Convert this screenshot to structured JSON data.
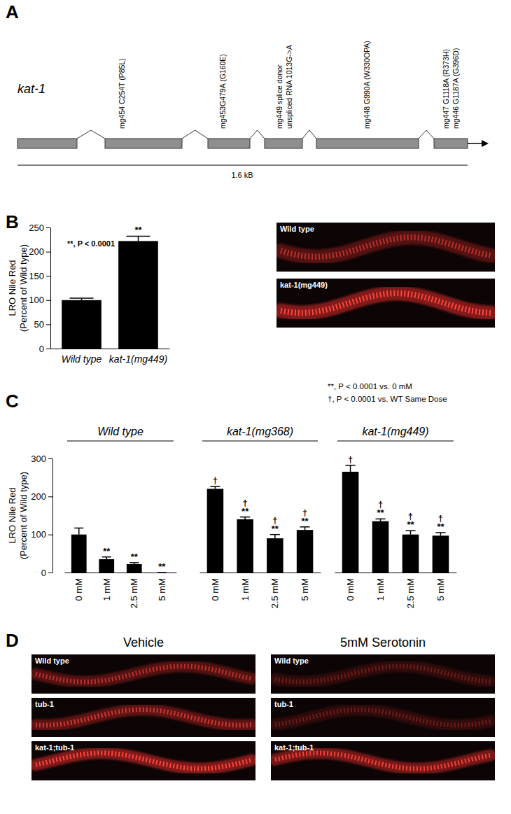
{
  "gene_diagram": {
    "panel": "A",
    "gene": "kat-1",
    "scale_label": "1.6 kB",
    "mutations": [
      [
        "mg454 C254T (P85L)"
      ],
      [
        "mg453G479A (G160E)"
      ],
      [
        "mg449 splice donor",
        "unspliced RNA 1013G->A"
      ],
      [
        "mg448 G990A (W330OPA)"
      ],
      [
        "mg447 G1118A (R373H)",
        "mg446 G1187A (G396D)"
      ]
    ]
  },
  "chart_data": [
    {
      "panel": "B",
      "type": "bar",
      "categories": [
        "Wild type",
        "kat-1(mg449)"
      ],
      "values": [
        100,
        222
      ],
      "errors": [
        4,
        10
      ],
      "significance": [
        [],
        [
          "**"
        ]
      ],
      "annotations": [
        "**, P < 0.0001"
      ],
      "ylabel": [
        "LRO Nile Red",
        "(Percent of Wild type)"
      ],
      "ylim": [
        0,
        250
      ],
      "yticks": [
        0,
        50,
        100,
        150,
        200,
        250
      ],
      "color": "#000000"
    },
    {
      "panel": "C",
      "type": "bar",
      "categories": [
        "0 mM",
        "1 mM",
        "2.5 mM",
        "5 mM"
      ],
      "series": [
        {
          "name": "Wild type",
          "values": [
            100,
            35,
            22,
            0
          ],
          "errors": [
            17,
            6,
            4,
            0
          ],
          "significance": [
            [],
            [
              "**"
            ],
            [
              "**"
            ],
            [
              "**"
            ]
          ]
        },
        {
          "name": "kat-1(mg368)",
          "values": [
            220,
            140,
            90,
            112
          ],
          "errors": [
            6,
            6,
            10,
            8
          ],
          "significance": [
            [
              "†"
            ],
            [
              "†",
              "**"
            ],
            [
              "†",
              "**"
            ],
            [
              "†",
              "**"
            ]
          ]
        },
        {
          "name": "kat-1(mg449)",
          "values": [
            265,
            135,
            100,
            97
          ],
          "errors": [
            17,
            6,
            10,
            8
          ],
          "significance": [
            [
              "†"
            ],
            [
              "†",
              "**"
            ],
            [
              "†",
              "**"
            ],
            [
              "†",
              "**"
            ]
          ]
        }
      ],
      "annotations": [
        "**, P < 0.0001 vs. 0 mM",
        "†, P < 0.0001 vs. WT Same Dose"
      ],
      "ylabel": [
        "LRO Nile Red",
        "(Percent of Wild type)"
      ],
      "ylim": [
        0,
        300
      ],
      "yticks": [
        0,
        100,
        200,
        300
      ],
      "color": "#000000"
    }
  ],
  "micrographs_b": {
    "labels": [
      "Wild type",
      "kat-1(mg449)"
    ]
  },
  "micrographs_d": {
    "panel": "D",
    "columns": [
      "Vehicle",
      "5mM Serotonin"
    ],
    "rows": [
      "Wild type",
      "tub-1",
      "kat-1;tub-1"
    ]
  }
}
